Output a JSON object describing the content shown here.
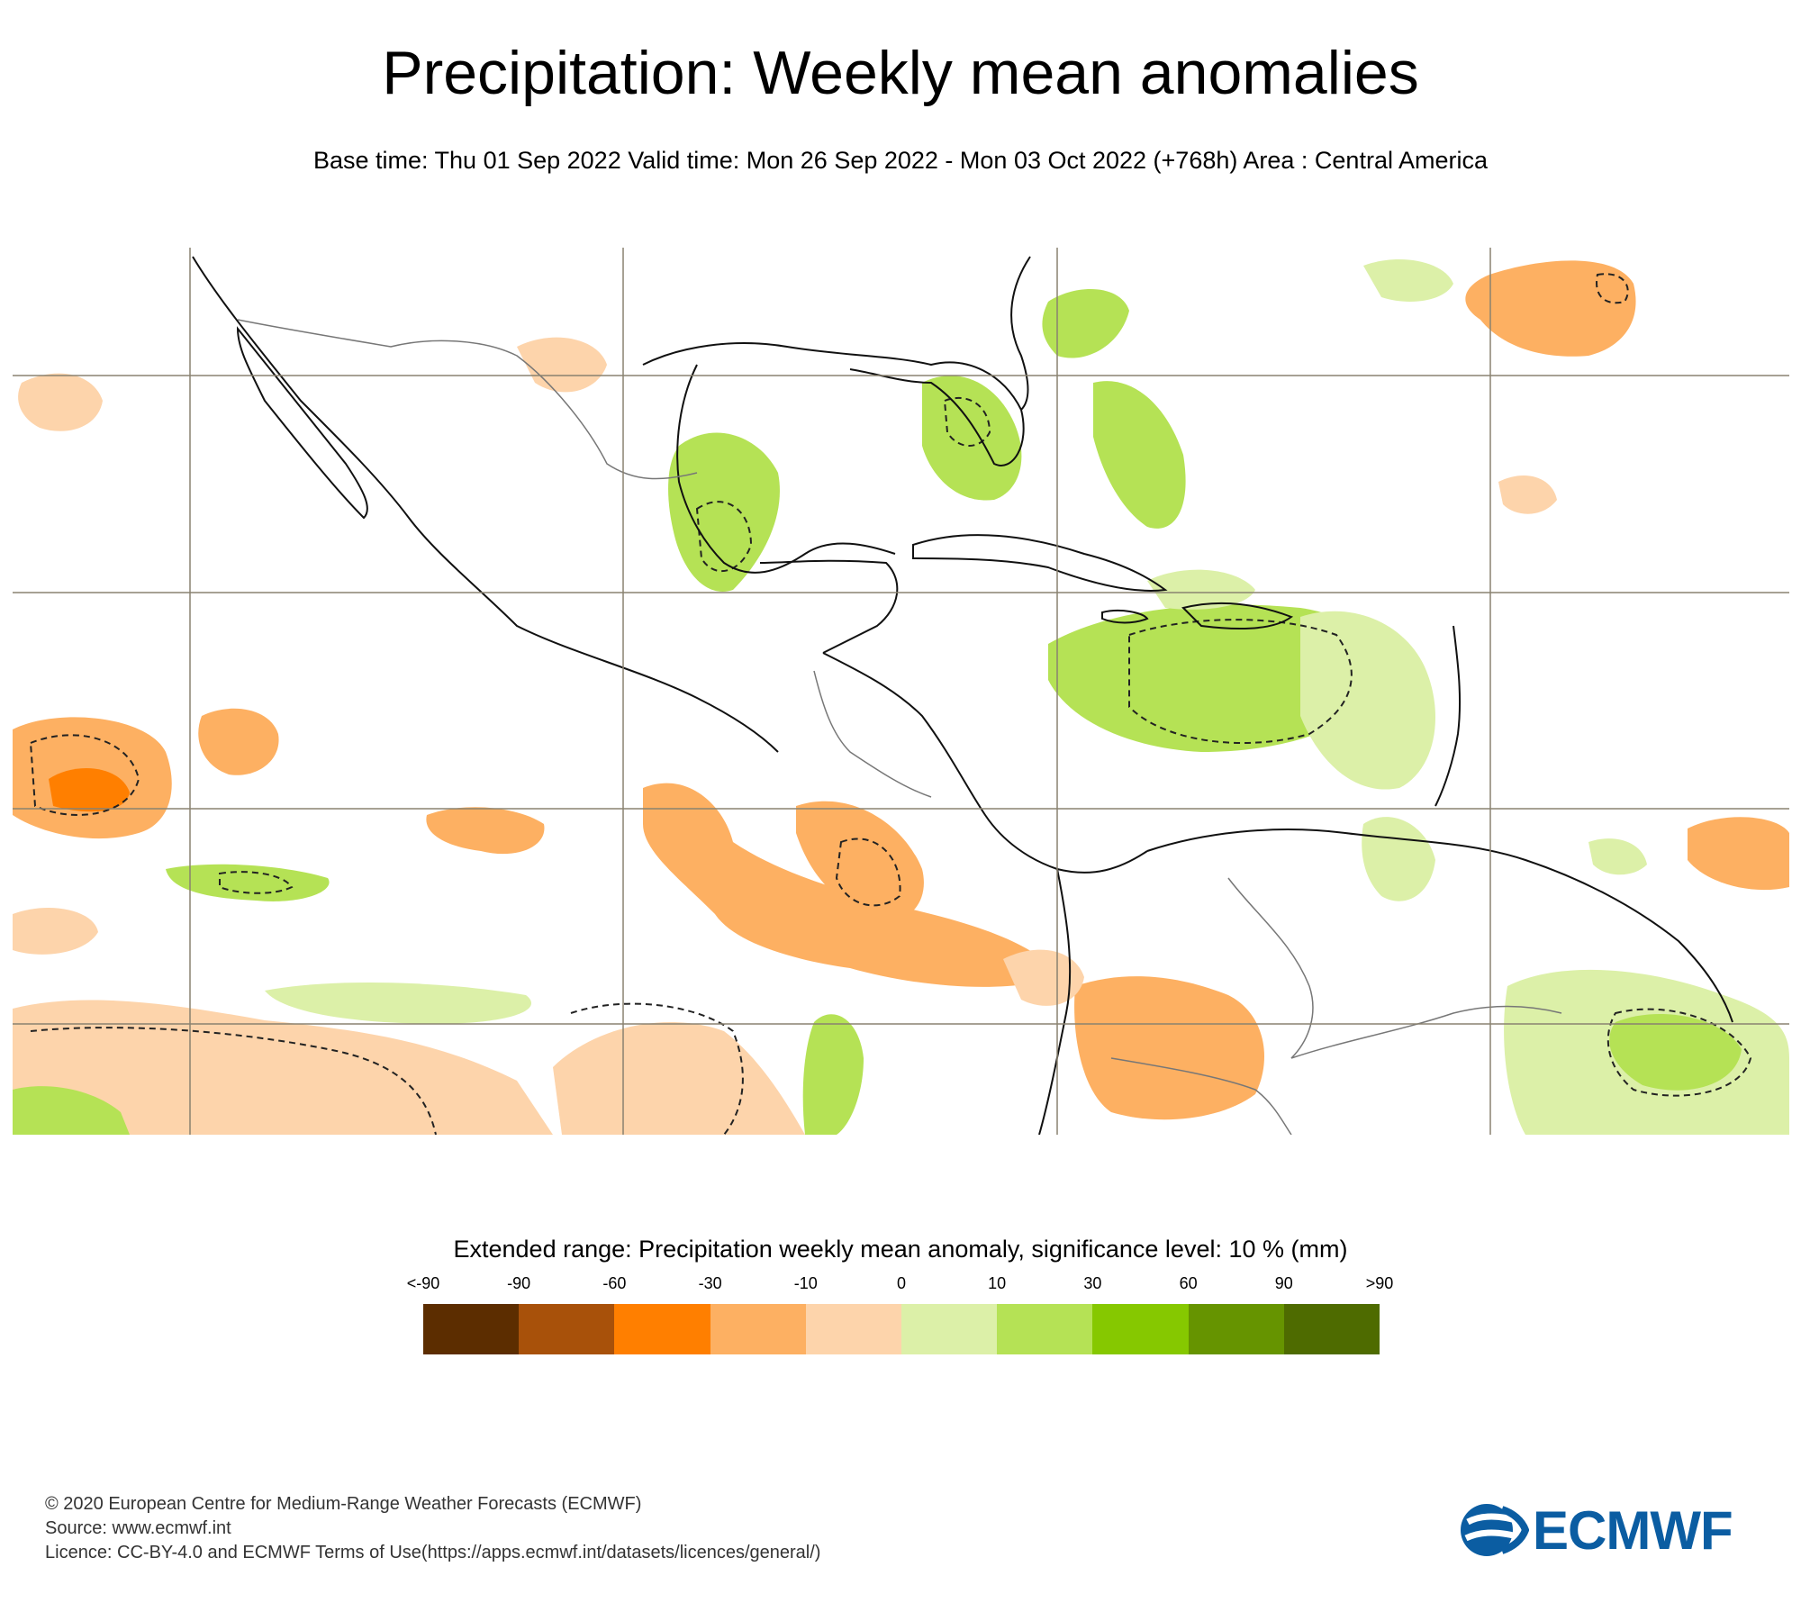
{
  "header": {
    "title": "Precipitation: Weekly mean anomalies",
    "subtitle": "Base time: Thu 01 Sep 2022 Valid time: Mon 26 Sep 2022 - Mon 03 Oct 2022 (+768h) Area : Central America"
  },
  "map": {
    "region": "Central America",
    "contour_style": "dashed lines mark significant anomalies"
  },
  "legend": {
    "title": "Extended range: Precipitation weekly mean anomaly, significance level: 10 % (mm)",
    "ticks": [
      "<-90",
      "-90",
      "-60",
      "-30",
      "-10",
      "0",
      "10",
      "30",
      "60",
      "90",
      ">90"
    ],
    "colors": [
      "#5c2d00",
      "#a8510a",
      "#ff7f00",
      "#fdb062",
      "#fdd4ab",
      "#dcf0a8",
      "#b5e255",
      "#86c800",
      "#669400",
      "#4e6b00"
    ]
  },
  "footer": {
    "copyright": "© 2020 European Centre for Medium-Range Weather Forecasts (ECMWF)",
    "source": "Source: www.ecmwf.int",
    "licence": "Licence: CC-BY-4.0 and ECMWF Terms of Use(https://apps.ecmwf.int/datasets/licences/general/)"
  },
  "logo": {
    "text": "ECMWF",
    "color": "#0b5da2"
  }
}
